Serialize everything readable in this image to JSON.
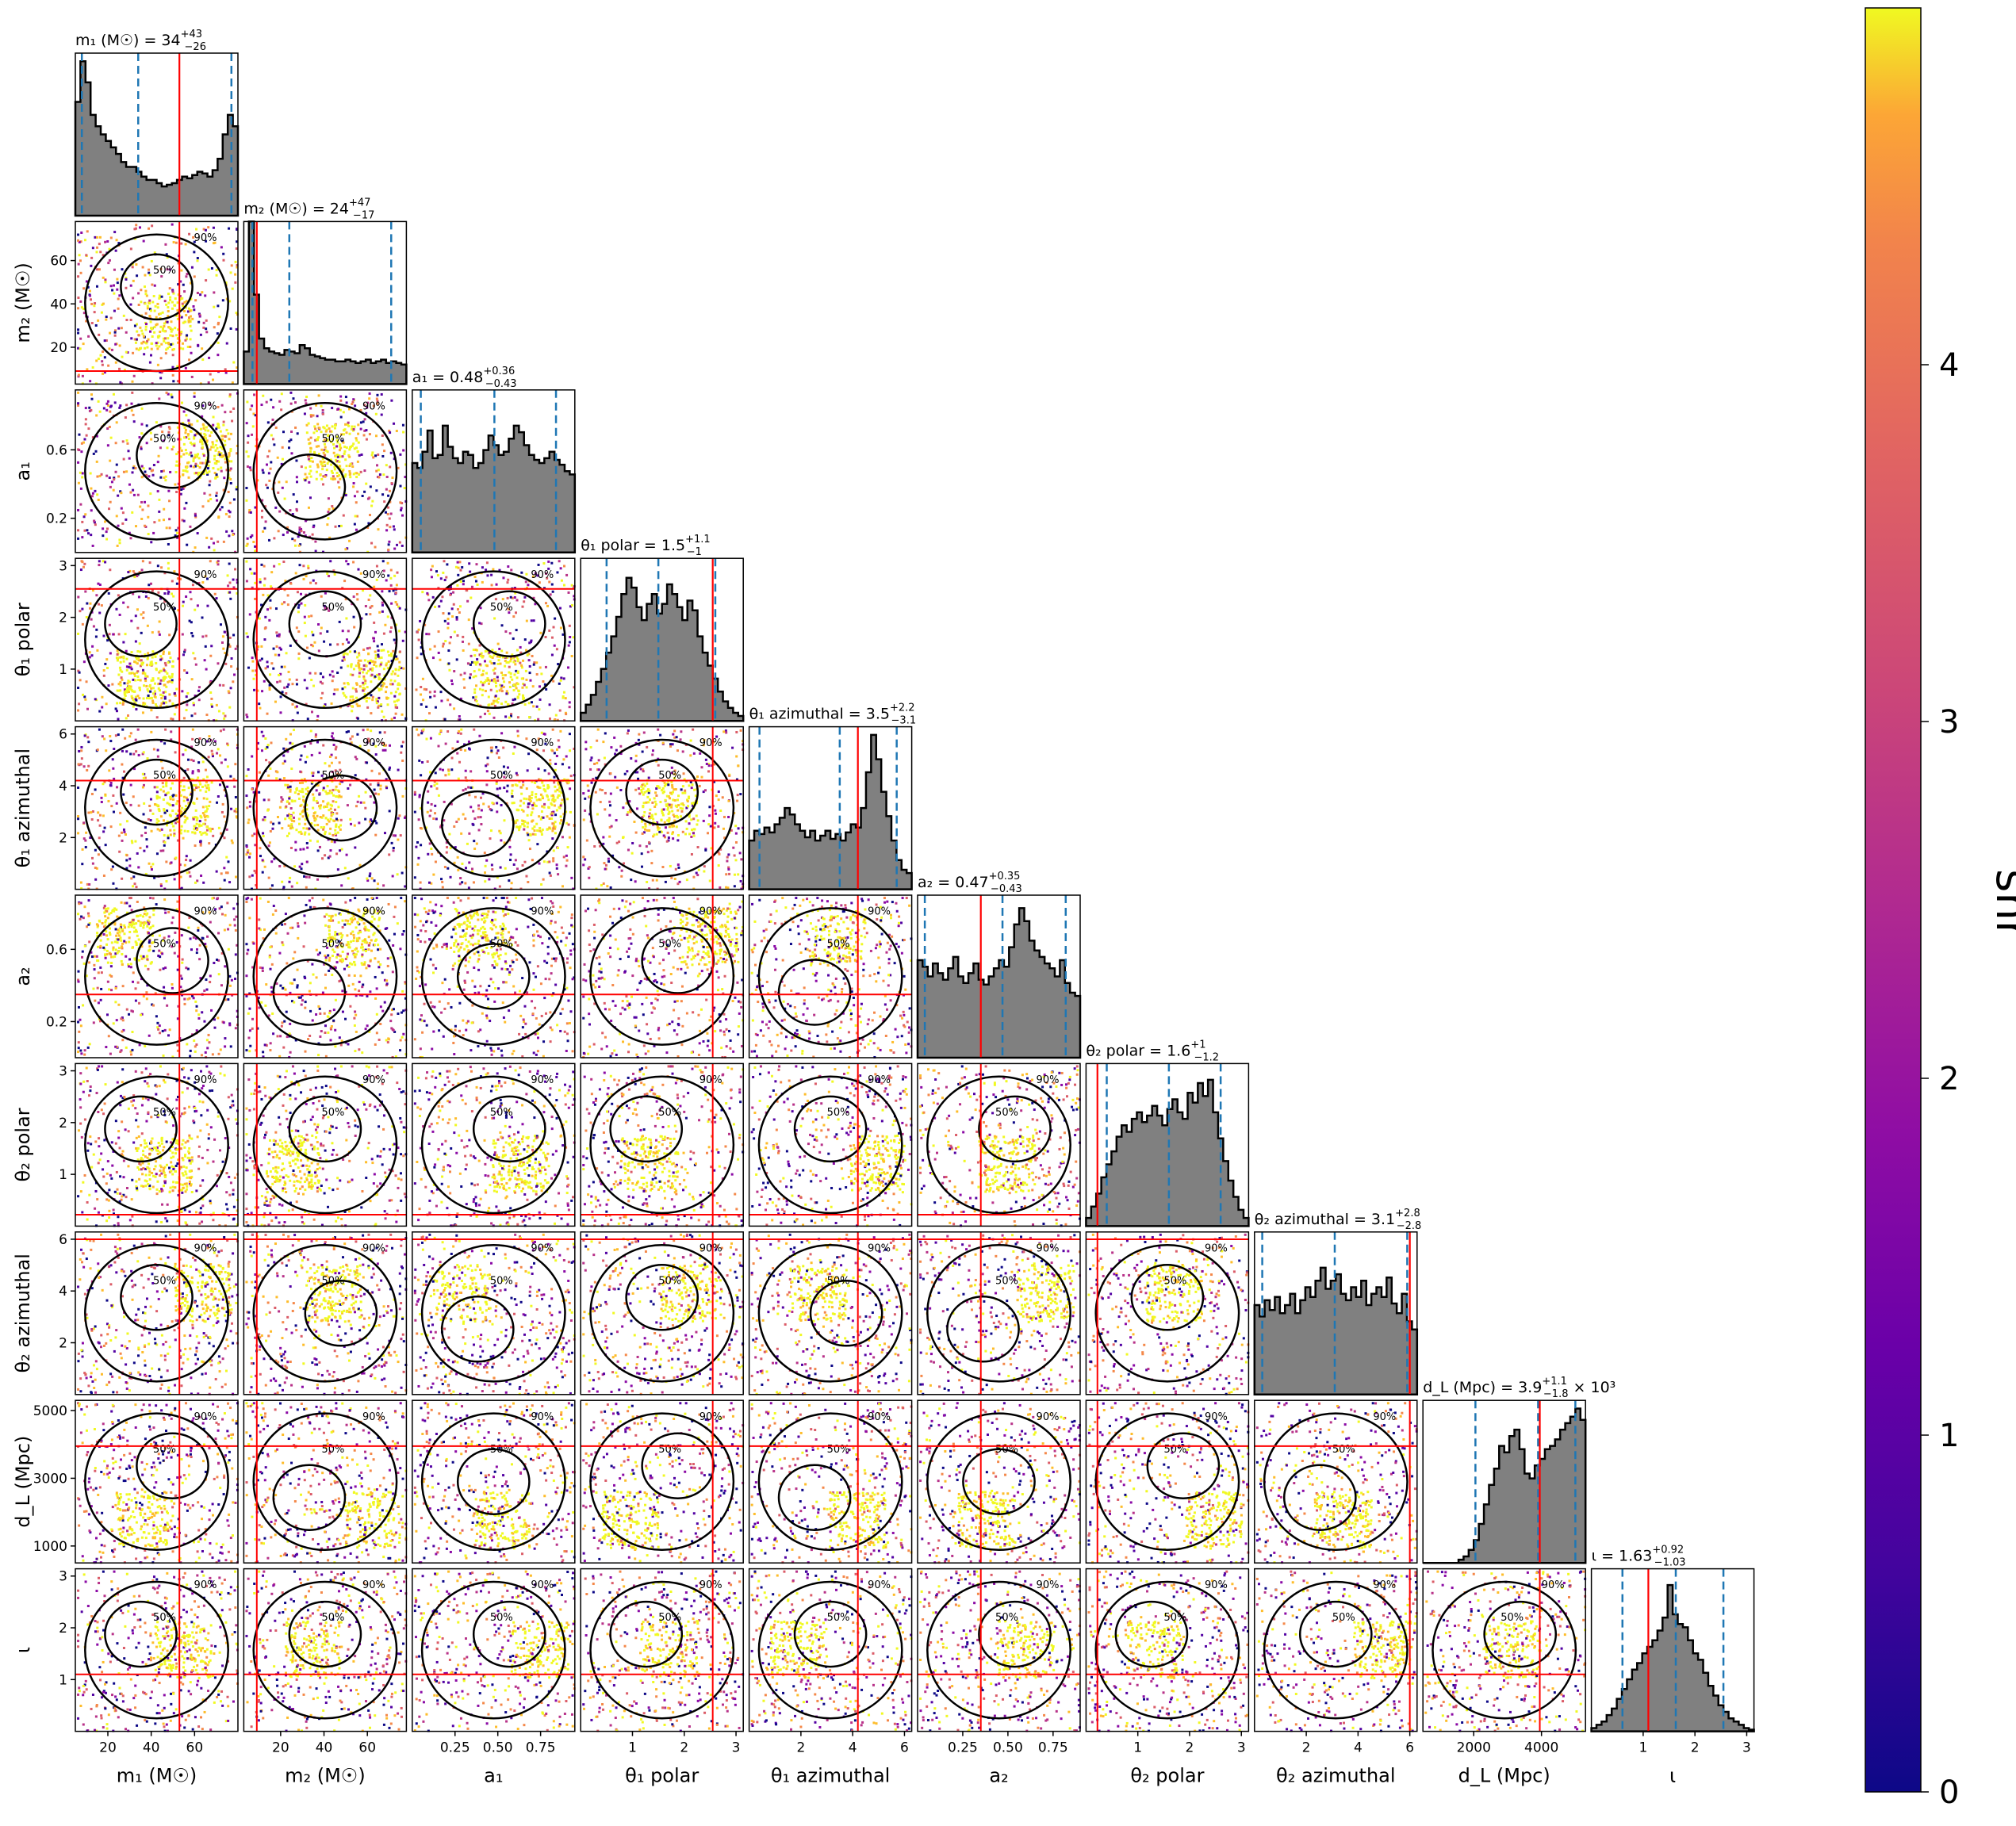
{
  "chart_data": {
    "type": "scatter",
    "title": "",
    "corner_plot": true,
    "marginal_histogram_color": "#808080",
    "true_value_line_color": "#ff0000",
    "quantile_line_color": "#1f77b4",
    "contour_levels": [
      "50%",
      "90%"
    ],
    "scatter_colormap": "plasma",
    "grid": false,
    "parameters": [
      {
        "key": "m1",
        "axis_label": "m₁ (M☉)",
        "title_name": "m₁ (M☉)",
        "title_value": "34",
        "plus": "+43",
        "minus": "−26",
        "xlim": [
          5,
          80
        ],
        "ticks": [
          20,
          40,
          60
        ],
        "tick_labels": [
          "20",
          "40",
          "60"
        ],
        "median": 34,
        "q_low": 8,
        "q_high": 77,
        "truth": 53,
        "hist": [
          0.7,
          0.95,
          0.82,
          0.62,
          0.55,
          0.5,
          0.46,
          0.42,
          0.38,
          0.33,
          0.3,
          0.3,
          0.27,
          0.24,
          0.22,
          0.22,
          0.2,
          0.18,
          0.19,
          0.2,
          0.22,
          0.24,
          0.23,
          0.25,
          0.27,
          0.26,
          0.24,
          0.28,
          0.35,
          0.5,
          0.62,
          0.55
        ]
      },
      {
        "key": "m2",
        "axis_label": "m₂ (M☉)",
        "title_name": "m₂ (M☉)",
        "title_value": "24",
        "plus": "+47",
        "minus": "−17",
        "xlim": [
          3,
          78
        ],
        "ticks": [
          20,
          40,
          60
        ],
        "tick_labels": [
          "20",
          "40",
          "60"
        ],
        "median": 24,
        "q_low": 7,
        "q_high": 71,
        "truth": 9,
        "hist": [
          0.2,
          1.0,
          0.55,
          0.28,
          0.22,
          0.2,
          0.19,
          0.18,
          0.21,
          0.2,
          0.19,
          0.24,
          0.22,
          0.18,
          0.17,
          0.16,
          0.15,
          0.15,
          0.14,
          0.14,
          0.15,
          0.14,
          0.13,
          0.14,
          0.15,
          0.13,
          0.14,
          0.15,
          0.13,
          0.14,
          0.13,
          0.12
        ]
      },
      {
        "key": "a1",
        "axis_label": "a₁",
        "title_name": "a₁",
        "title_value": "0.48",
        "plus": "+0.36",
        "minus": "−0.43",
        "xlim": [
          0.0,
          0.95
        ],
        "ticks": [
          0.25,
          0.5,
          0.75
        ],
        "tick_labels": [
          "0.25",
          "0.50",
          "0.75"
        ],
        "median": 0.48,
        "q_low": 0.05,
        "q_high": 0.84,
        "truth": null,
        "hist": [
          0.55,
          0.52,
          0.62,
          0.75,
          0.58,
          0.6,
          0.78,
          0.65,
          0.58,
          0.55,
          0.62,
          0.6,
          0.52,
          0.55,
          0.63,
          0.72,
          0.66,
          0.6,
          0.62,
          0.7,
          0.78,
          0.74,
          0.66,
          0.6,
          0.57,
          0.55,
          0.58,
          0.62,
          0.57,
          0.54,
          0.5,
          0.48
        ]
      },
      {
        "key": "theta1_polar",
        "axis_label": "θ₁ polar",
        "title_name": "θ₁ polar",
        "title_value": "1.5",
        "plus": "+1.1",
        "minus": "−1",
        "xlim": [
          0.0,
          3.14
        ],
        "ticks": [
          1,
          2,
          3
        ],
        "tick_labels": [
          "1",
          "2",
          "3"
        ],
        "median": 1.5,
        "q_low": 0.5,
        "q_high": 2.6,
        "truth": 2.55,
        "hist": [
          0.05,
          0.1,
          0.16,
          0.24,
          0.32,
          0.42,
          0.52,
          0.64,
          0.78,
          0.88,
          0.82,
          0.7,
          0.62,
          0.72,
          0.78,
          0.66,
          0.72,
          0.84,
          0.78,
          0.7,
          0.62,
          0.74,
          0.68,
          0.52,
          0.42,
          0.34,
          0.26,
          0.18,
          0.12,
          0.08,
          0.05,
          0.03
        ]
      },
      {
        "key": "theta1_azimuthal",
        "axis_label": "θ₁ azimuthal",
        "title_name": "θ₁ azimuthal",
        "title_value": "3.5",
        "plus": "+2.2",
        "minus": "−3.1",
        "xlim": [
          0.0,
          6.28
        ],
        "ticks": [
          2,
          4,
          6
        ],
        "tick_labels": [
          "2",
          "4",
          "6"
        ],
        "median": 3.5,
        "q_low": 0.4,
        "q_high": 5.7,
        "truth": 4.2,
        "hist": [
          0.3,
          0.36,
          0.34,
          0.38,
          0.35,
          0.4,
          0.44,
          0.5,
          0.46,
          0.4,
          0.36,
          0.32,
          0.36,
          0.3,
          0.33,
          0.36,
          0.31,
          0.34,
          0.3,
          0.35,
          0.4,
          0.38,
          0.5,
          0.72,
          0.95,
          0.8,
          0.6,
          0.45,
          0.3,
          0.18,
          0.12,
          0.1
        ]
      },
      {
        "key": "a2",
        "axis_label": "a₂",
        "title_name": "a₂",
        "title_value": "0.47",
        "plus": "+0.35",
        "minus": "−0.43",
        "xlim": [
          0.0,
          0.9
        ],
        "ticks": [
          0.25,
          0.5,
          0.75
        ],
        "tick_labels": [
          "0.25",
          "0.50",
          "0.75"
        ],
        "median": 0.47,
        "q_low": 0.04,
        "q_high": 0.82,
        "truth": 0.35,
        "hist": [
          0.6,
          0.56,
          0.5,
          0.58,
          0.52,
          0.48,
          0.55,
          0.62,
          0.5,
          0.46,
          0.52,
          0.58,
          0.48,
          0.45,
          0.5,
          0.55,
          0.6,
          0.56,
          0.68,
          0.82,
          0.92,
          0.84,
          0.72,
          0.66,
          0.62,
          0.58,
          0.55,
          0.5,
          0.6,
          0.46,
          0.4,
          0.38
        ]
      },
      {
        "key": "theta2_polar",
        "axis_label": "θ₂ polar",
        "title_name": "θ₂ polar",
        "title_value": "1.6",
        "plus": "+1",
        "minus": "−1.2",
        "xlim": [
          0.0,
          3.14
        ],
        "ticks": [
          1,
          2,
          3
        ],
        "tick_labels": [
          "1",
          "2",
          "3"
        ],
        "median": 1.6,
        "q_low": 0.4,
        "q_high": 2.6,
        "truth": 0.22,
        "hist": [
          0.05,
          0.12,
          0.2,
          0.3,
          0.38,
          0.46,
          0.55,
          0.62,
          0.58,
          0.66,
          0.7,
          0.64,
          0.68,
          0.74,
          0.68,
          0.62,
          0.72,
          0.78,
          0.7,
          0.66,
          0.82,
          0.76,
          0.88,
          0.8,
          0.9,
          0.7,
          0.54,
          0.4,
          0.28,
          0.18,
          0.1,
          0.05
        ]
      },
      {
        "key": "theta2_azimuthal",
        "axis_label": "θ₂ azimuthal",
        "title_name": "θ₂ azimuthal",
        "title_value": "3.1",
        "plus": "+2.8",
        "minus": "−2.8",
        "xlim": [
          0.0,
          6.28
        ],
        "ticks": [
          2,
          4,
          6
        ],
        "tick_labels": [
          "2",
          "4",
          "6"
        ],
        "median": 3.1,
        "q_low": 0.3,
        "q_high": 5.9,
        "truth": 6.0,
        "hist": [
          0.55,
          0.48,
          0.58,
          0.52,
          0.6,
          0.5,
          0.55,
          0.62,
          0.5,
          0.58,
          0.66,
          0.6,
          0.7,
          0.78,
          0.65,
          0.7,
          0.74,
          0.62,
          0.58,
          0.66,
          0.6,
          0.7,
          0.55,
          0.62,
          0.66,
          0.6,
          0.72,
          0.56,
          0.5,
          0.62,
          0.45,
          0.4
        ]
      },
      {
        "key": "dL",
        "axis_label": "d_L (Mpc)",
        "title_name": "d_L (Mpc)",
        "title_value": "3.9",
        "plus": "+1.1",
        "minus": "−1.8",
        "title_suffix": "× 10³",
        "xlim": [
          500,
          5300
        ],
        "ticks": [
          2000,
          4000
        ],
        "tick_labels": [
          "2000",
          "4000"
        ],
        "median": 3900,
        "q_low": 2050,
        "q_high": 5000,
        "truth": 3950,
        "hist": [
          0.0,
          0.0,
          0.0,
          0.0,
          0.0,
          0.0,
          0.0,
          0.02,
          0.04,
          0.08,
          0.14,
          0.24,
          0.36,
          0.48,
          0.58,
          0.72,
          0.68,
          0.78,
          0.82,
          0.7,
          0.55,
          0.52,
          0.6,
          0.64,
          0.7,
          0.72,
          0.76,
          0.82,
          0.86,
          0.9,
          0.95,
          0.88
        ]
      },
      {
        "key": "iota",
        "axis_label": "ι",
        "title_name": "ι",
        "title_value": "1.63",
        "plus": "+0.92",
        "minus": "−1.03",
        "xlim": [
          0.0,
          3.14
        ],
        "ticks": [
          1,
          2,
          3
        ],
        "tick_labels": [
          "1",
          "2",
          "3"
        ],
        "median": 1.63,
        "q_low": 0.6,
        "q_high": 2.55,
        "truth": 1.1,
        "hist": [
          0.02,
          0.04,
          0.06,
          0.1,
          0.14,
          0.2,
          0.26,
          0.32,
          0.38,
          0.42,
          0.48,
          0.52,
          0.56,
          0.62,
          0.7,
          0.9,
          0.72,
          0.66,
          0.64,
          0.56,
          0.48,
          0.44,
          0.36,
          0.28,
          0.22,
          0.16,
          0.12,
          0.08,
          0.06,
          0.04,
          0.02,
          0.01
        ]
      }
    ],
    "y_tick_overrides": {
      "m2": {
        "ticks": [
          20,
          40,
          60
        ],
        "labels": [
          "20",
          "40",
          "60"
        ]
      },
      "a1": {
        "ticks": [
          0.2,
          0.6
        ],
        "labels": [
          "0.2",
          "0.6"
        ]
      },
      "theta1_polar": {
        "ticks": [
          1,
          2,
          3
        ],
        "labels": [
          "1",
          "2",
          "3"
        ]
      },
      "theta1_azimuthal": {
        "ticks": [
          2,
          4,
          6
        ],
        "labels": [
          "2",
          "4",
          "6"
        ]
      },
      "a2": {
        "ticks": [
          0.2,
          0.6
        ],
        "labels": [
          "0.2",
          "0.6"
        ]
      },
      "theta2_polar": {
        "ticks": [
          1,
          2,
          3
        ],
        "labels": [
          "1",
          "2",
          "3"
        ]
      },
      "theta2_azimuthal": {
        "ticks": [
          2,
          4,
          6
        ],
        "labels": [
          "2",
          "4",
          "6"
        ]
      },
      "dL": {
        "ticks": [
          1000,
          3000,
          5000
        ],
        "labels": [
          "1000",
          "3000",
          "5000"
        ]
      },
      "iota": {
        "ticks": [
          1,
          2,
          3
        ],
        "labels": [
          "1",
          "2",
          "3"
        ]
      }
    },
    "colorbar": {
      "label": "snr",
      "range": [
        0,
        5
      ],
      "ticks": [
        0,
        1,
        2,
        3,
        4
      ],
      "tick_labels": [
        "0",
        "1",
        "2",
        "3",
        "4"
      ]
    }
  }
}
